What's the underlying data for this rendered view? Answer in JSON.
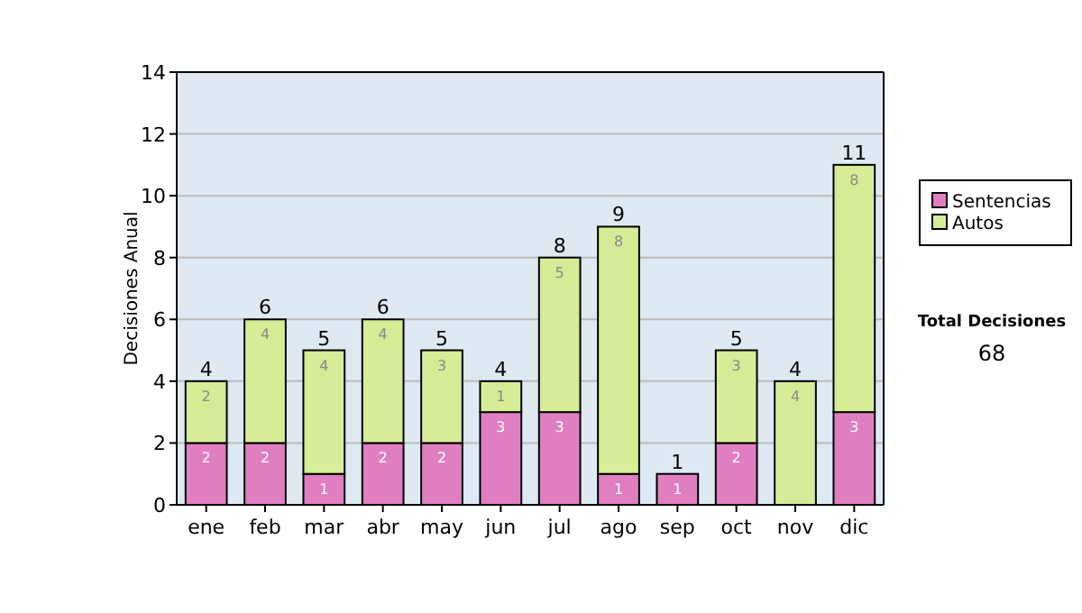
{
  "chart_data": {
    "type": "bar",
    "stacked": true,
    "ylabel": "Decisiones Anual",
    "categories": [
      "ene",
      "feb",
      "mar",
      "abr",
      "may",
      "jun",
      "jul",
      "ago",
      "sep",
      "oct",
      "nov",
      "dic"
    ],
    "series": [
      {
        "name": "Sentencias",
        "color": "#e07fc0",
        "values": [
          2,
          2,
          1,
          2,
          2,
          3,
          3,
          1,
          1,
          2,
          0,
          3
        ],
        "value_labels": [
          "2",
          "2",
          "1",
          "2",
          "2",
          "3",
          "3",
          "1",
          "1",
          "2",
          null,
          "3"
        ]
      },
      {
        "name": "Autos",
        "color": "#d6ec96",
        "values": [
          2,
          4,
          4,
          4,
          3,
          1,
          5,
          8,
          0,
          3,
          4,
          8
        ],
        "value_labels": [
          "2",
          "4",
          "4",
          "4",
          "3",
          "1",
          "5",
          "8",
          null,
          "3",
          "4",
          "8"
        ]
      }
    ],
    "totals": [
      "4",
      "6",
      "5",
      "6",
      "5",
      "4",
      "8",
      "9",
      "1",
      "5",
      "4",
      "11"
    ],
    "ylim": [
      0,
      14
    ],
    "yticks": [
      0,
      2,
      4,
      6,
      8,
      10,
      12,
      14
    ],
    "grid": "y",
    "legend": "right",
    "annotations": [
      "Total Decisiones",
      "68"
    ]
  }
}
